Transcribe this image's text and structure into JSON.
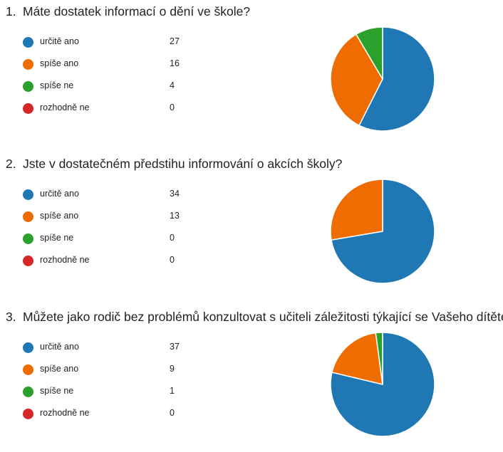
{
  "colors": {
    "urcite_ano": "#1f77b4",
    "spise_ano": "#ef6c00",
    "spise_ne": "#2ca02c",
    "rozhodne_ne": "#d62728"
  },
  "questions": [
    {
      "number": "1.",
      "title": "Máte dostatek informací o dění ve škole?",
      "options": [
        {
          "label": "určitě ano",
          "count": "27"
        },
        {
          "label": "spíše ano",
          "count": "16"
        },
        {
          "label": "spíše ne",
          "count": "4"
        },
        {
          "label": "rozhodně ne",
          "count": "0"
        }
      ]
    },
    {
      "number": "2.",
      "title": "Jste v dostatečném předstihu informování o akcích školy?",
      "options": [
        {
          "label": "určitě ano",
          "count": "34"
        },
        {
          "label": "spíše ano",
          "count": "13"
        },
        {
          "label": "spíše ne",
          "count": "0"
        },
        {
          "label": "rozhodně ne",
          "count": "0"
        }
      ]
    },
    {
      "number": "3.",
      "title": "Můžete jako rodič bez problémů konzultovat s učiteli záležitosti týkající se Vašeho dítěte?",
      "options": [
        {
          "label": "určitě ano",
          "count": "37"
        },
        {
          "label": "spíše ano",
          "count": "9"
        },
        {
          "label": "spíše ne",
          "count": "1"
        },
        {
          "label": "rozhodně ne",
          "count": "0"
        }
      ]
    }
  ],
  "chart_data": [
    {
      "type": "pie",
      "title": "Máte dostatek informací o dění ve škole?",
      "categories": [
        "určitě ano",
        "spíše ano",
        "spíše ne",
        "rozhodně ne"
      ],
      "values": [
        27,
        16,
        4,
        0
      ],
      "colors": [
        "#1f77b4",
        "#ef6c00",
        "#2ca02c",
        "#d62728"
      ]
    },
    {
      "type": "pie",
      "title": "Jste v dostatečném předstihu informování o akcích školy?",
      "categories": [
        "určitě ano",
        "spíše ano",
        "spíše ne",
        "rozhodně ne"
      ],
      "values": [
        34,
        13,
        0,
        0
      ],
      "colors": [
        "#1f77b4",
        "#ef6c00",
        "#2ca02c",
        "#d62728"
      ]
    },
    {
      "type": "pie",
      "title": "Můžete jako rodič bez problémů konzultovat s učiteli záležitosti týkající se Vašeho dítěte?",
      "categories": [
        "určitě ano",
        "spíše ano",
        "spíše ne",
        "rozhodně ne"
      ],
      "values": [
        37,
        9,
        1,
        0
      ],
      "colors": [
        "#1f77b4",
        "#ef6c00",
        "#2ca02c",
        "#d62728"
      ]
    }
  ]
}
